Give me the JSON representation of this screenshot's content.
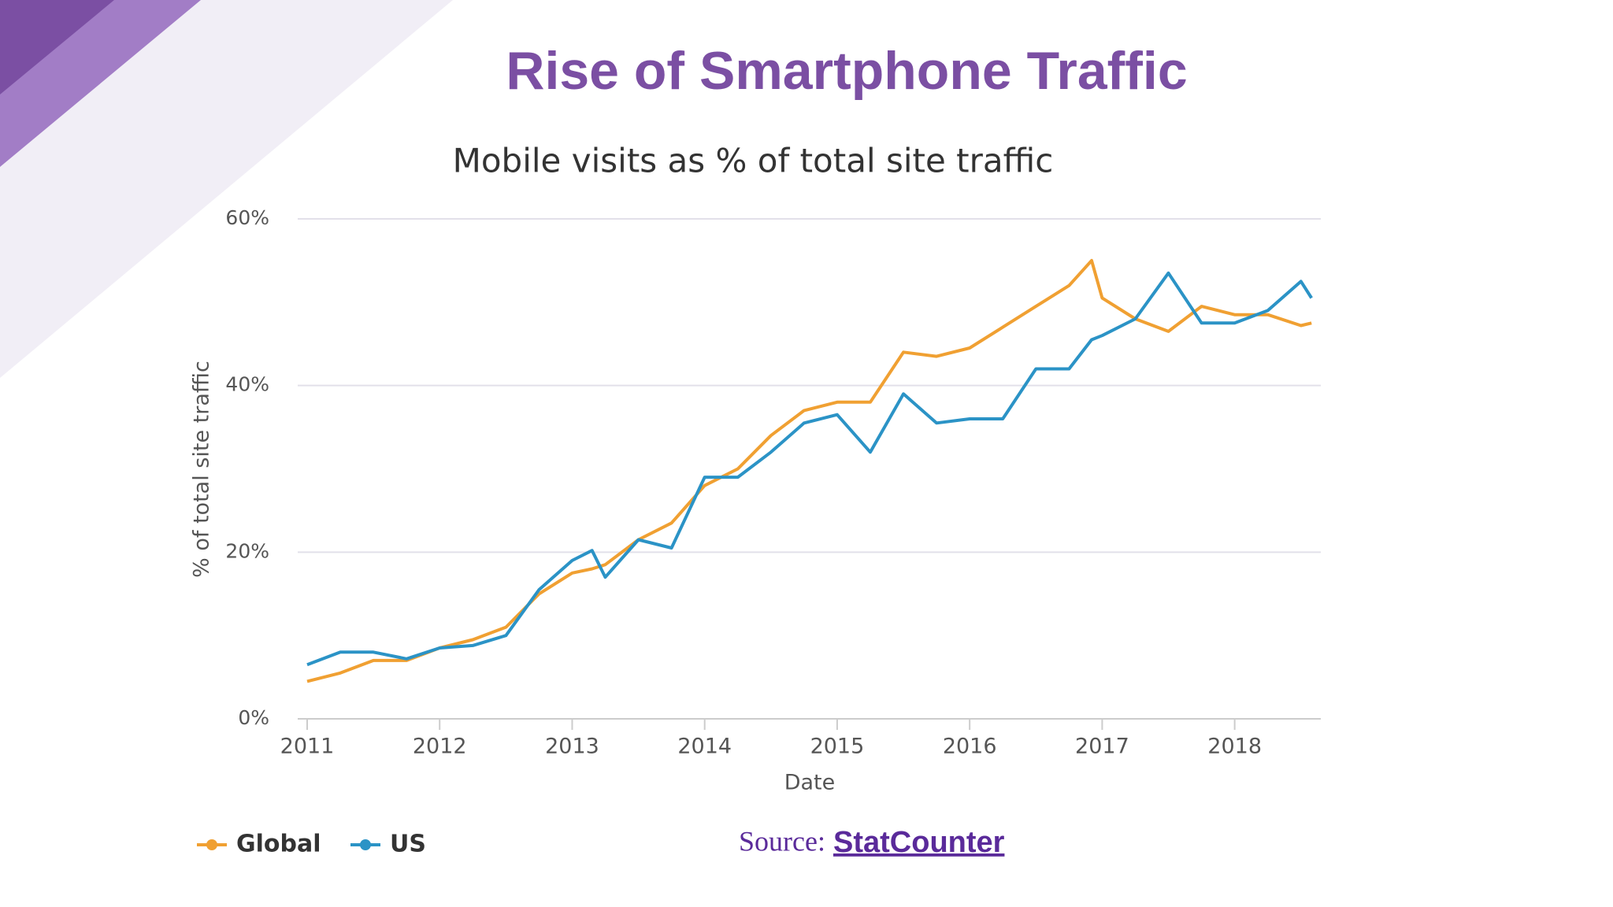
{
  "slide_title": "Rise of Smartphone Traffic",
  "source": {
    "label": "Source:",
    "link": "StatCounter"
  },
  "chart_data": {
    "type": "line",
    "title": "Mobile visits as % of total site traffic",
    "x_label": "Date",
    "y_label": "% of total site traffic",
    "x": [
      2011,
      2011.25,
      2011.5,
      2011.75,
      2012,
      2012.25,
      2012.5,
      2012.75,
      2013,
      2013.15,
      2013.25,
      2013.5,
      2013.75,
      2014,
      2014.25,
      2014.5,
      2014.75,
      2015,
      2015.25,
      2015.5,
      2015.75,
      2016,
      2016.25,
      2016.5,
      2016.75,
      2016.92,
      2017,
      2017.25,
      2017.5,
      2017.75,
      2018,
      2018.25,
      2018.5,
      2018.58
    ],
    "series": [
      {
        "name": "Global",
        "color": "#f0a032",
        "values": [
          4.5,
          5.5,
          7,
          7,
          8.5,
          9.5,
          11,
          15,
          17.5,
          18,
          18.5,
          21.5,
          23.5,
          28,
          30,
          34,
          37,
          38,
          38,
          44,
          43.5,
          44.5,
          47,
          49.5,
          52,
          55,
          50.5,
          48,
          46.5,
          49.5,
          48.5,
          48.5,
          47.2,
          47.5
        ]
      },
      {
        "name": "US",
        "color": "#2b93c6",
        "values": [
          6.5,
          8,
          8,
          7.2,
          8.5,
          8.8,
          10,
          15.5,
          19,
          20.2,
          17,
          21.5,
          20.5,
          29,
          29,
          32,
          35.5,
          36.5,
          32,
          39,
          35.5,
          36,
          36,
          42,
          42,
          45.5,
          46,
          48,
          53.5,
          47.5,
          47.5,
          49,
          52.5,
          50.5
        ]
      }
    ],
    "xlim": [
      2011,
      2018.65
    ],
    "xticks": [
      2011,
      2012,
      2013,
      2014,
      2015,
      2016,
      2017,
      2018
    ],
    "ylim": [
      0,
      60
    ],
    "yticks": [
      {
        "value": 0,
        "label": "0%"
      },
      {
        "value": 20,
        "label": "20%"
      },
      {
        "value": 40,
        "label": "40%"
      },
      {
        "value": 60,
        "label": "60%"
      }
    ],
    "grid": true,
    "legend": "bottom-left"
  }
}
